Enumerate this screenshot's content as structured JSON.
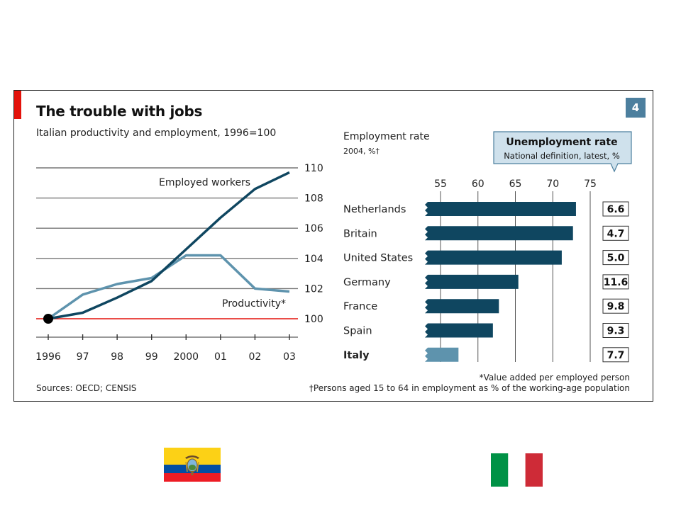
{
  "header": {
    "title": "The trouble with jobs",
    "chart_number": "4"
  },
  "footer": {
    "sources": "Sources: OECD; CENSIS",
    "footnote_productivity": "*Value added per employed person",
    "footnote_employment": "†Persons aged 15 to 64 in employment as % of the working-age population"
  },
  "colors": {
    "dark_line": "#0f4660",
    "light_line": "#5e93ad",
    "bar_dark": "#0f4660",
    "bar_light": "#5e93ad",
    "baseline_red": "#e3120b",
    "panel_blue": "#4c7f9e",
    "callout_fill": "#cfe1ec"
  },
  "chart_data": [
    {
      "type": "line",
      "title": "Italian productivity and employment, 1996=100",
      "x": [
        "1996",
        "97",
        "98",
        "99",
        "2000",
        "01",
        "02",
        "03"
      ],
      "series": [
        {
          "name": "Employed workers",
          "values": [
            100.0,
            100.4,
            101.4,
            102.5,
            104.6,
            106.7,
            108.6,
            109.7
          ]
        },
        {
          "name": "Productivity*",
          "values": [
            100.0,
            101.6,
            102.3,
            102.7,
            104.2,
            104.2,
            102.0,
            101.8
          ]
        }
      ],
      "ylim": [
        100,
        110
      ],
      "yticks": [
        "100",
        "102",
        "104",
        "106",
        "108",
        "110"
      ],
      "y_axis_position": "right",
      "grid": true
    },
    {
      "type": "bar",
      "orientation": "horizontal",
      "title": "Employment rate",
      "subtitle": "2004, %†",
      "categories": [
        "Netherlands",
        "Britain",
        "United States",
        "Germany",
        "France",
        "Spain",
        "Italy"
      ],
      "values": [
        73.1,
        72.7,
        71.2,
        65.4,
        62.8,
        62.0,
        57.4
      ],
      "xlim": [
        55,
        75
      ],
      "xticks": [
        "55",
        "60",
        "65",
        "70",
        "75"
      ],
      "highlight": "Italy",
      "grid": true,
      "side_panel": {
        "title": "Unemployment rate",
        "subtitle": "National definition, latest, %",
        "values": [
          "6.6",
          "4.7",
          "5.0",
          "11.6",
          "9.8",
          "9.3",
          "7.7"
        ]
      }
    }
  ],
  "flags": [
    {
      "name": "ecuador-flag",
      "stripes": [
        "#fcd116",
        "#034ea2",
        "#ed1c24"
      ]
    },
    {
      "name": "italy-flag",
      "stripes": [
        "#009246",
        "#ffffff",
        "#ce2b37"
      ]
    }
  ]
}
